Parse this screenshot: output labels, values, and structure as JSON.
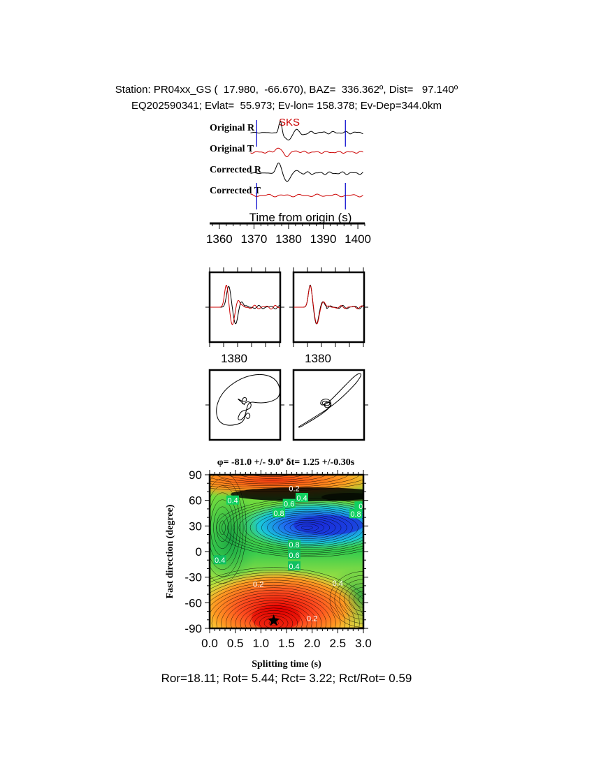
{
  "header": {
    "line1": "Station: PR04xx_GS (  17.980,  -66.670), BAZ=  336.362º, Dist=   97.140º",
    "line2": "EQ202590341; Evlat=  55.973; Ev-lon= 158.378; Ev-Dep=344.0km"
  },
  "colors": {
    "radial": "#000000",
    "transverse": "#cc0000",
    "window_marker": "#0000cc",
    "phase_label": "#cc0000"
  },
  "chart_data": [
    {
      "type": "line",
      "title": "",
      "xlabel": "Time from origin (s)",
      "ylabel": "",
      "xlim": [
        1357,
        1402
      ],
      "xticks": [
        "1360",
        "1370",
        "1380",
        "1390",
        "1400"
      ],
      "phase_label": "SKS",
      "window_markers": [
        1370.8,
        1396.4
      ],
      "series": [
        {
          "name": "Original R"
        },
        {
          "name": "Original T"
        },
        {
          "name": "Corrected R"
        },
        {
          "name": "Corrected T"
        }
      ]
    },
    {
      "type": "line",
      "title": "",
      "panels": [
        "original-wave-comparison",
        "corrected-wave-comparison"
      ],
      "xtick_label": "1380"
    },
    {
      "type": "line",
      "title": "",
      "panels": [
        "original-particle-motion",
        "corrected-particle-motion"
      ]
    },
    {
      "type": "heatmap",
      "title": "φ= -81.0 +/- 9.0º δt= 1.25 +/-0.30s",
      "xlabel": "Splitting time (s)",
      "ylabel": "Fast direction (degree)",
      "xlim": [
        0.0,
        3.0
      ],
      "ylim": [
        -90,
        90
      ],
      "xticks": [
        "0.0",
        "0.5",
        "1.0",
        "1.5",
        "2.0",
        "2.5",
        "3.0"
      ],
      "yticks": [
        "90",
        "60",
        "30",
        "0",
        "-30",
        "-60",
        "-90"
      ],
      "best_fit": {
        "fast_direction": -81.0,
        "splitting_time": 1.25
      },
      "contour_labels": [
        {
          "label": "0.2",
          "x": 1.65,
          "y": 74
        },
        {
          "label": "0.4",
          "x": 1.8,
          "y": 63
        },
        {
          "label": "0.6",
          "x": 1.55,
          "y": 56
        },
        {
          "label": "0.8",
          "x": 1.35,
          "y": 45
        },
        {
          "label": "0",
          "x": 2.95,
          "y": 53
        },
        {
          "label": "0.8",
          "x": 2.85,
          "y": 44
        },
        {
          "label": "0.4",
          "x": 0.45,
          "y": 60
        },
        {
          "label": "0.8",
          "x": 1.65,
          "y": 8
        },
        {
          "label": "0.6",
          "x": 1.65,
          "y": -4
        },
        {
          "label": "0.4",
          "x": 1.65,
          "y": -17
        },
        {
          "label": "0.4",
          "x": 0.2,
          "y": -10
        },
        {
          "label": "0.2",
          "x": 0.95,
          "y": -38
        },
        {
          "label": "0.4",
          "x": 2.5,
          "y": -37
        },
        {
          "label": "0.2",
          "x": 2.0,
          "y": -78
        }
      ]
    }
  ],
  "footer": {
    "text": "Ror=18.11; Rot= 5.44; Rct= 3.22; Rct/Rot= 0.59"
  }
}
